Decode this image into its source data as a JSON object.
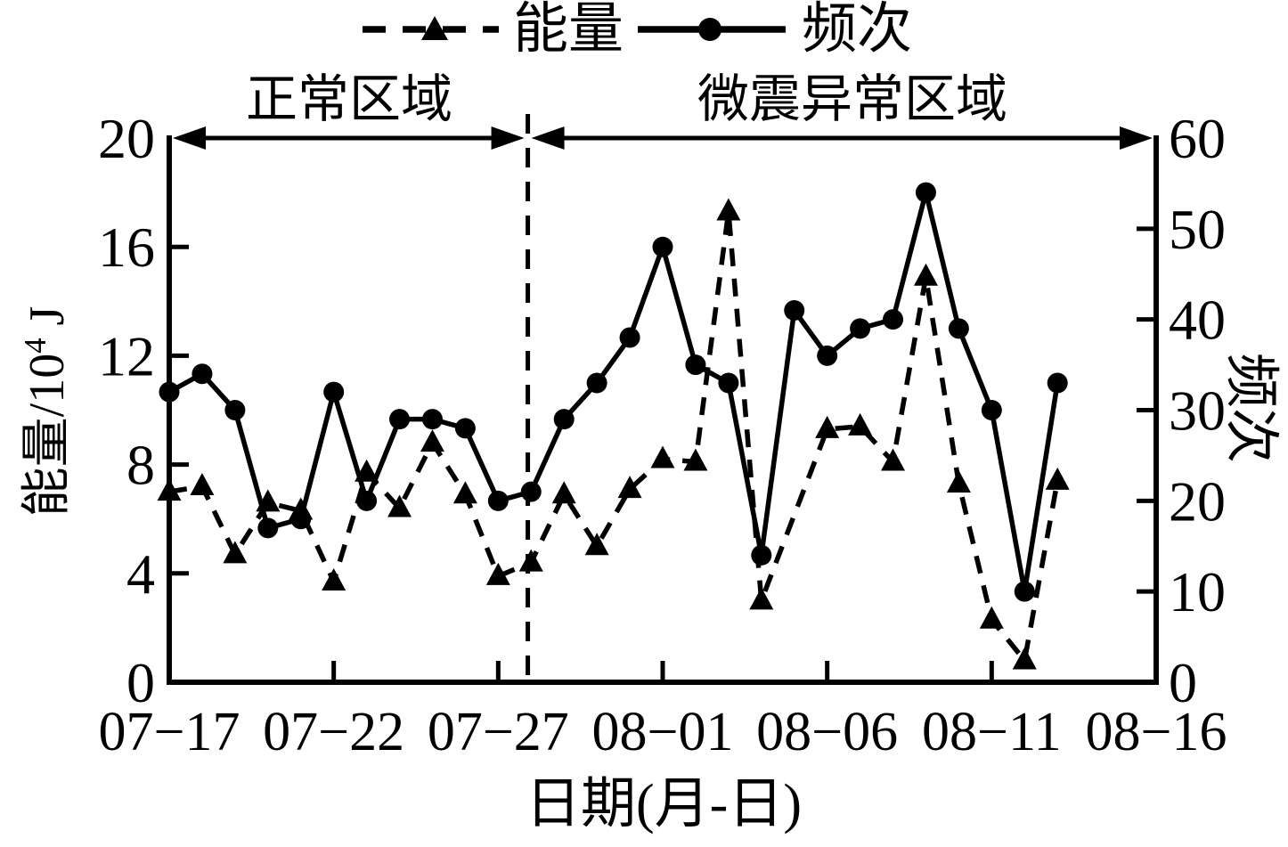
{
  "legend": {
    "energy_label": "能量",
    "frequency_label": "频次"
  },
  "region_labels": {
    "normal": "正常区域",
    "anomaly": "微震异常区域"
  },
  "axis_titles": {
    "left_base": "能量/10",
    "left_sup": "4",
    "left_unit": " J",
    "left_full": "能量/10⁴ J",
    "right": "频次",
    "x": "日期(月-日)"
  },
  "chart_data": {
    "type": "line",
    "title": "",
    "x_dates": [
      "07-17",
      "07-18",
      "07-19",
      "07-20",
      "07-21",
      "07-22",
      "07-23",
      "07-24",
      "07-25",
      "07-26",
      "07-27",
      "07-28",
      "07-29",
      "07-30",
      "07-31",
      "08-01",
      "08-02",
      "08-03",
      "08-04",
      "08-05",
      "08-06",
      "08-07",
      "08-08",
      "08-09",
      "08-10",
      "08-11",
      "08-12",
      "08-13"
    ],
    "series": [
      {
        "name": "能量",
        "axis": "left",
        "line": "dashed",
        "marker": "triangle",
        "values": [
          7.0,
          7.2,
          4.7,
          6.6,
          6.3,
          3.7,
          7.7,
          6.4,
          8.8,
          6.9,
          3.9,
          4.4,
          6.9,
          5.0,
          7.1,
          8.2,
          8.1,
          17.3,
          3.0,
          null,
          9.3,
          9.4,
          8.1,
          14.9,
          7.3,
          2.3,
          0.8,
          7.4
        ]
      },
      {
        "name": "频次",
        "axis": "right",
        "line": "solid",
        "marker": "circle",
        "values": [
          32,
          34,
          30,
          17,
          18,
          32,
          20,
          29,
          29,
          28,
          20,
          21,
          29,
          33,
          38,
          48,
          35,
          33,
          14,
          41,
          36,
          39,
          40,
          54,
          39,
          30,
          10,
          33
        ]
      }
    ],
    "left_axis": {
      "label": "能量/10⁴ J",
      "range": [
        0,
        20
      ],
      "ticks": [
        0,
        4,
        8,
        12,
        16,
        20
      ]
    },
    "right_axis": {
      "label": "频次",
      "range": [
        0,
        60
      ],
      "ticks": [
        0,
        10,
        20,
        30,
        40,
        50,
        60
      ]
    },
    "x_axis": {
      "label": "日期(月-日)",
      "tick_labels": [
        "07−17",
        "07−22",
        "07−27",
        "08−01",
        "08−06",
        "08−11",
        "08−16"
      ],
      "tick_days": [
        0,
        5,
        10,
        15,
        20,
        25,
        30
      ],
      "total_days": 30
    },
    "separator_day": 10.9,
    "regions": [
      {
        "label": "正常区域",
        "from_day": 0,
        "to_day": 10.9
      },
      {
        "label": "微震异常区域",
        "from_day": 10.9,
        "to_day": 30
      }
    ],
    "grid": false,
    "legend_position": "top-center",
    "colors": {
      "foreground": "#000000",
      "background": "#ffffff"
    }
  }
}
